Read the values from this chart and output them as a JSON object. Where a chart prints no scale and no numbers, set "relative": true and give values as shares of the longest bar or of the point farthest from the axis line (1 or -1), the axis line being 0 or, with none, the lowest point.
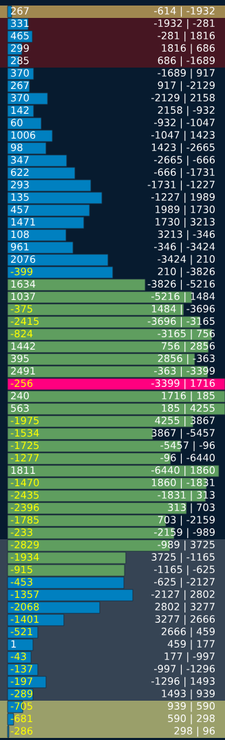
{
  "chart_data": {
    "type": "bar",
    "orientation": "horizontal",
    "relative": true,
    "categories": [
      "-614 | -1932",
      "-1932 | -281",
      "-281 | 1816",
      "1816 | 686",
      "686 | -1689",
      "-1689 | 917",
      "917 | -2129",
      "-2129 | 2158",
      "2158 | -932",
      "-932 | -1047",
      "-1047 | 1423",
      "1423 | -2665",
      "-2665 | -666",
      "-666 | -1731",
      "-1731 | -1227",
      "-1227 | 1989",
      "1989 | 1730",
      "1730 | 3213",
      "3213 | -346",
      "-346 | -3424",
      "-3424 | 210",
      "210 | -3826",
      "-3826 | -5216",
      "-5216 | 1484",
      "1484 | -3696",
      "-3696 | -3165",
      "-3165 | 756",
      "756 | 2856",
      "2856 | -363",
      "-363 | -3399",
      "-3399 | 1716",
      "1716 | 185",
      "185 | 4255",
      "4255 | 3867",
      "3867 | -5457",
      "-5457 | -96",
      "-96 | -6440",
      "-6440 | 1860",
      "1860 | -1831",
      "-1831 | 313",
      "313 | 703",
      "703 | -2159",
      "-2159 | -989",
      "-989 | 3725",
      "3725 | -1165",
      "-1165 | -625",
      "-625 | -2127",
      "-2127 | 2802",
      "2802 | 3277",
      "3277 | 2666",
      "2666 | 459",
      "459 | 177",
      "177 | -997",
      "-997 | -1296",
      "-1296 | 1493",
      "1493 | 939",
      "939 | 590",
      "590 | 298",
      "298 | 96"
    ],
    "values": [
      0.019,
      0.095,
      0.114,
      0.066,
      0.054,
      0.12,
      0.101,
      0.184,
      0.12,
      0.155,
      0.206,
      0.177,
      0.272,
      0.31,
      0.383,
      0.434,
      0.377,
      0.351,
      0.269,
      0.301,
      0.462,
      0.484,
      0.633,
      0.848,
      0.81,
      0.886,
      0.94,
      0.924,
      0.861,
      0.921,
      1,
      1,
      1,
      0.854,
      0.668,
      0.797,
      0.75,
      0.972,
      0.915,
      0.911,
      0.823,
      0.728,
      0.766,
      0.747,
      0.544,
      0.538,
      0.535,
      0.576,
      0.424,
      0.259,
      0.139,
      0.117,
      0.108,
      0.139,
      0.177,
      0.117,
      0.07,
      0.028,
      0.006
    ],
    "annotations": [
      "267",
      "331",
      "465",
      "299",
      "285",
      "370",
      "267",
      "370",
      "142",
      "60",
      "1006",
      "98",
      "347",
      "622",
      "293",
      "135",
      "457",
      "1471",
      "108",
      "961",
      "2076",
      "-399",
      "1634",
      "1037",
      "-375",
      "-2415",
      "-824",
      "1442",
      "395",
      "2491",
      "-256",
      "240",
      "563",
      "-1975",
      "-1534",
      "-1725",
      "-1277",
      "1811",
      "-1470",
      "-2435",
      "-2396",
      "-1785",
      "-233",
      "-2829",
      "-1934",
      "-915",
      "-453",
      "-1357",
      "-2068",
      "-1401",
      "-521",
      "1",
      "-43",
      "-137",
      "-197",
      "-289",
      "-705",
      "-681",
      "-286"
    ],
    "colors": [
      "#0080c0",
      "#0080c0",
      "#0080c0",
      "#0080c0",
      "#0080c0",
      "#0080c0",
      "#0080c0",
      "#0080c0",
      "#0080c0",
      "#0080c0",
      "#0080c0",
      "#0080c0",
      "#0080c0",
      "#0080c0",
      "#0080c0",
      "#0080c0",
      "#0080c0",
      "#0080c0",
      "#0080c0",
      "#0080c0",
      "#0080c0",
      "#0080c0",
      "#5f9e5f",
      "#5f9e5f",
      "#5f9e5f",
      "#5f9e5f",
      "#5f9e5f",
      "#5f9e5f",
      "#5f9e5f",
      "#5f9e5f",
      "#ff007f",
      "#5f9e5f",
      "#5f9e5f",
      "#5f9e5f",
      "#5f9e5f",
      "#5f9e5f",
      "#5f9e5f",
      "#5f9e5f",
      "#5f9e5f",
      "#5f9e5f",
      "#5f9e5f",
      "#5f9e5f",
      "#5f9e5f",
      "#5f9e5f",
      "#5f9e5f",
      "#5f9e5f",
      "#0080c0",
      "#0080c0",
      "#0080c0",
      "#0080c0",
      "#0080c0",
      "#0080c0",
      "#0080c0",
      "#0080c0",
      "#0080c0",
      "#0080c0",
      "#0080c0",
      "#0080c0",
      "#0080c0"
    ],
    "bands": [
      {
        "axis": "y",
        "from": "-614 | -1932",
        "to": "-614 | -1932",
        "color": "#a08850"
      },
      {
        "axis": "y",
        "from": "-1932 | -281",
        "to": "686 | -1689",
        "color": "#461622"
      },
      {
        "axis": "y",
        "from": "-989 | 3725",
        "to": "298 | 96",
        "color": "#364454"
      },
      {
        "axis": "y",
        "from": "939 | 590",
        "to": "298 | 96",
        "color": "#9a9f6a"
      }
    ]
  }
}
